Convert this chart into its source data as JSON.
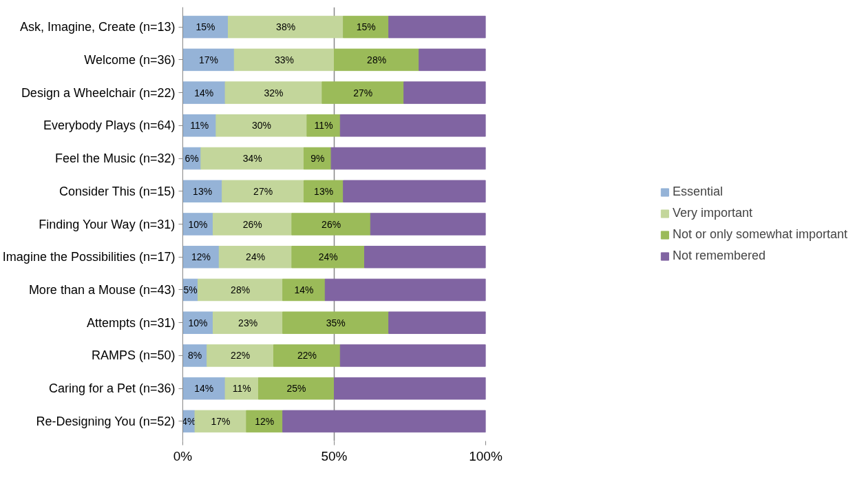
{
  "chart_data": {
    "type": "bar",
    "orientation": "horizontal",
    "stacked": true,
    "categories": [
      "Ask, Imagine, Create (n=13)",
      "Welcome (n=36)",
      "Design a Wheelchair (n=22)",
      "Everybody Plays (n=64)",
      "Feel the Music (n=32)",
      "Consider This (n=15)",
      "Finding Your Way (n=31)",
      "Imagine the Possibilities (n=17)",
      "More than a Mouse (n=43)",
      "Attempts (n=31)",
      "RAMPS (n=50)",
      "Caring for a Pet (n=36)",
      "Re-Designing You (n=52)"
    ],
    "series": [
      {
        "name": "Essential",
        "color": "#95b3d7",
        "values": [
          15,
          17,
          14,
          11,
          6,
          13,
          10,
          12,
          5,
          10,
          8,
          14,
          4
        ],
        "value_labels": [
          "15%",
          "17%",
          "14%",
          "11%",
          "6%",
          "13%",
          "10%",
          "12%",
          "5%",
          "10%",
          "8%",
          "14%",
          "4%"
        ]
      },
      {
        "name": "Very important",
        "color": "#c3d69b",
        "values": [
          38,
          33,
          32,
          30,
          34,
          27,
          26,
          24,
          28,
          23,
          22,
          11,
          17
        ],
        "value_labels": [
          "38%",
          "33%",
          "32%",
          "30%",
          "34%",
          "27%",
          "26%",
          "24%",
          "28%",
          "23%",
          "22%",
          "11%",
          "17%"
        ]
      },
      {
        "name": "Not or only somewhat important",
        "color": "#9bbb59",
        "values": [
          15,
          28,
          27,
          11,
          9,
          13,
          26,
          24,
          14,
          35,
          22,
          25,
          12
        ],
        "value_labels": [
          "15%",
          "28%",
          "27%",
          "11%",
          "9%",
          "13%",
          "26%",
          "24%",
          "14%",
          "35%",
          "22%",
          "25%",
          "12%"
        ]
      },
      {
        "name": "Not remembered",
        "color": "#8064a2",
        "values": [
          32,
          22,
          27,
          48,
          51,
          47,
          38,
          40,
          53,
          32,
          48,
          50,
          67
        ]
      }
    ],
    "xlim": [
      0,
      100
    ],
    "xticks": [
      {
        "value": 0,
        "label": "0%"
      },
      {
        "value": 50,
        "label": "50%"
      },
      {
        "value": 100,
        "label": "100%"
      }
    ],
    "grid": "x",
    "legend": "right"
  }
}
